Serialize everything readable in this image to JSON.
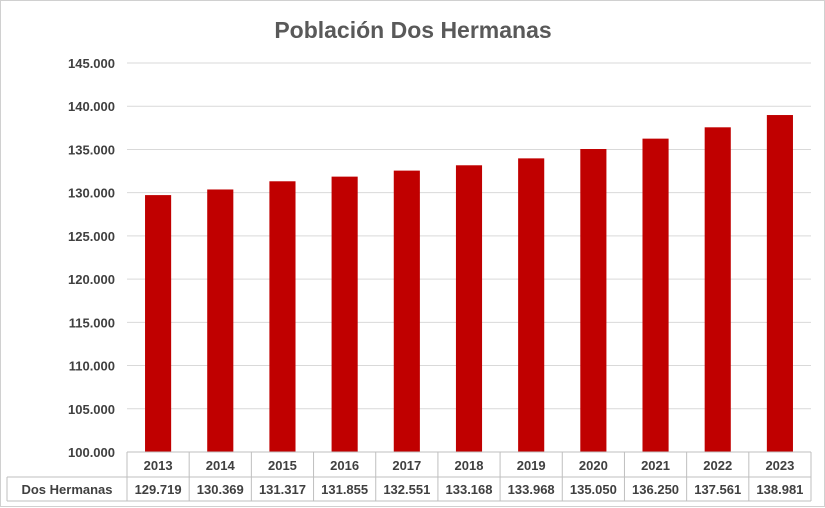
{
  "chart_data": {
    "type": "bar",
    "title": "Población Dos Hermanas",
    "categories": [
      "2013",
      "2014",
      "2015",
      "2016",
      "2017",
      "2018",
      "2019",
      "2020",
      "2021",
      "2022",
      "2023"
    ],
    "series": [
      {
        "name": "Dos Hermanas",
        "values": [
          129719,
          130369,
          131317,
          131855,
          132551,
          133168,
          133968,
          135050,
          136250,
          137561,
          138981
        ],
        "labels": [
          "129.719",
          "130.369",
          "131.317",
          "131.855",
          "132.551",
          "133.168",
          "133.968",
          "135.050",
          "136.250",
          "137.561",
          "138.981"
        ],
        "color": "#c00000"
      }
    ],
    "ylim": [
      100000,
      145000
    ],
    "yticks": [
      100000,
      105000,
      110000,
      115000,
      120000,
      125000,
      130000,
      135000,
      140000,
      145000
    ],
    "ytick_labels": [
      "100.000",
      "105.000",
      "110.000",
      "115.000",
      "120.000",
      "125.000",
      "130.000",
      "135.000",
      "140.000",
      "145.000"
    ],
    "grid": true,
    "legend": "data-table-below",
    "xlabel": "",
    "ylabel": ""
  }
}
